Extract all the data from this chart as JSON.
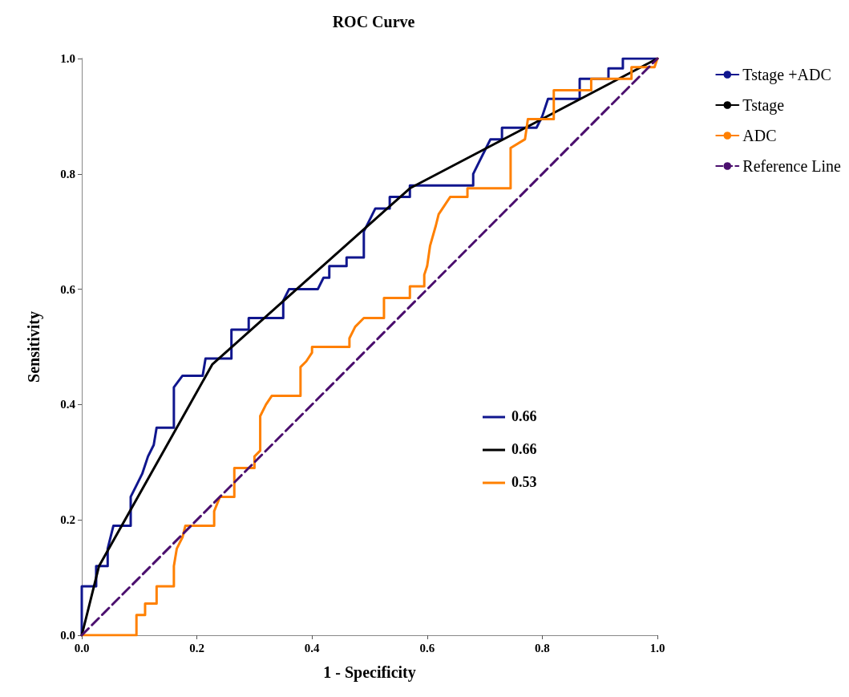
{
  "chart_data": {
    "type": "line",
    "title": "ROC Curve",
    "xlabel": "1 - Specificity",
    "ylabel": "Sensitivity",
    "xlim": [
      0,
      1
    ],
    "ylim": [
      0,
      1
    ],
    "xticks": [
      {
        "value": 0,
        "label": "0.0"
      },
      {
        "value": 0.2,
        "label": "0.2"
      },
      {
        "value": 0.4,
        "label": "0.4"
      },
      {
        "value": 0.6,
        "label": "0.6"
      },
      {
        "value": 0.8,
        "label": "0.8"
      },
      {
        "value": 1,
        "label": "1.0"
      }
    ],
    "yticks": [
      {
        "value": 0,
        "label": "0.0"
      },
      {
        "value": 0.2,
        "label": "0.2"
      },
      {
        "value": 0.4,
        "label": "0.4"
      },
      {
        "value": 0.6,
        "label": "0.6"
      },
      {
        "value": 0.8,
        "label": "0.8"
      },
      {
        "value": 1,
        "label": "1.0"
      }
    ],
    "grid": false,
    "legend": "right",
    "marker": "none",
    "line_style": "solid",
    "annotations": [
      "0.66",
      "0.66",
      "0.53"
    ],
    "series": [
      {
        "name": "Tstage +ADC",
        "color": "#10168e",
        "x": [
          0,
          0,
          0.025,
          0.025,
          0.045,
          0.045,
          0.055,
          0.085,
          0.085,
          0.095,
          0.105,
          0.115,
          0.125,
          0.13,
          0.16,
          0.16,
          0.175,
          0.21,
          0.215,
          0.26,
          0.26,
          0.29,
          0.29,
          0.35,
          0.35,
          0.36,
          0.41,
          0.42,
          0.43,
          0.43,
          0.46,
          0.46,
          0.49,
          0.49,
          0.5,
          0.51,
          0.535,
          0.535,
          0.57,
          0.57,
          0.68,
          0.68,
          0.69,
          0.7,
          0.71,
          0.73,
          0.73,
          0.79,
          0.8,
          0.81,
          0.865,
          0.865,
          0.915,
          0.915,
          0.94,
          0.94,
          1
        ],
        "values": [
          0,
          0.085,
          0.085,
          0.12,
          0.12,
          0.15,
          0.19,
          0.19,
          0.24,
          0.26,
          0.28,
          0.31,
          0.33,
          0.36,
          0.36,
          0.43,
          0.45,
          0.45,
          0.48,
          0.48,
          0.53,
          0.53,
          0.55,
          0.55,
          0.58,
          0.6,
          0.6,
          0.62,
          0.62,
          0.64,
          0.64,
          0.655,
          0.655,
          0.7,
          0.72,
          0.74,
          0.74,
          0.76,
          0.76,
          0.78,
          0.78,
          0.8,
          0.82,
          0.84,
          0.86,
          0.86,
          0.88,
          0.88,
          0.9,
          0.93,
          0.93,
          0.965,
          0.965,
          0.983,
          0.983,
          1,
          1
        ]
      },
      {
        "name": "Tstage",
        "color": "#000000",
        "x": [
          0,
          0.03,
          0.227,
          0.57,
          1
        ],
        "values": [
          0,
          0.12,
          0.47,
          0.775,
          1
        ]
      },
      {
        "name": "ADC",
        "color": "#ff8000",
        "x": [
          0,
          0.095,
          0.095,
          0.11,
          0.11,
          0.13,
          0.13,
          0.16,
          0.16,
          0.165,
          0.175,
          0.18,
          0.23,
          0.23,
          0.24,
          0.265,
          0.265,
          0.3,
          0.3,
          0.31,
          0.31,
          0.32,
          0.33,
          0.38,
          0.38,
          0.39,
          0.4,
          0.4,
          0.465,
          0.465,
          0.475,
          0.49,
          0.525,
          0.525,
          0.57,
          0.57,
          0.595,
          0.595,
          0.6,
          0.605,
          0.615,
          0.62,
          0.63,
          0.64,
          0.67,
          0.67,
          0.745,
          0.745,
          0.77,
          0.775,
          0.82,
          0.82,
          0.885,
          0.885,
          0.955,
          0.955,
          0.995,
          1
        ],
        "values": [
          0,
          0,
          0.035,
          0.035,
          0.055,
          0.055,
          0.085,
          0.085,
          0.12,
          0.15,
          0.17,
          0.19,
          0.19,
          0.215,
          0.24,
          0.24,
          0.29,
          0.29,
          0.31,
          0.32,
          0.38,
          0.4,
          0.415,
          0.415,
          0.465,
          0.475,
          0.49,
          0.5,
          0.5,
          0.515,
          0.535,
          0.55,
          0.55,
          0.585,
          0.585,
          0.605,
          0.605,
          0.625,
          0.64,
          0.675,
          0.71,
          0.73,
          0.745,
          0.76,
          0.76,
          0.775,
          0.775,
          0.845,
          0.86,
          0.895,
          0.895,
          0.945,
          0.945,
          0.965,
          0.965,
          0.985,
          0.985,
          1
        ]
      },
      {
        "name": "Reference Line",
        "color": "#4b0f6e",
        "line_style": "dashed",
        "x": [
          0,
          1
        ],
        "values": [
          0,
          1
        ]
      }
    ]
  }
}
